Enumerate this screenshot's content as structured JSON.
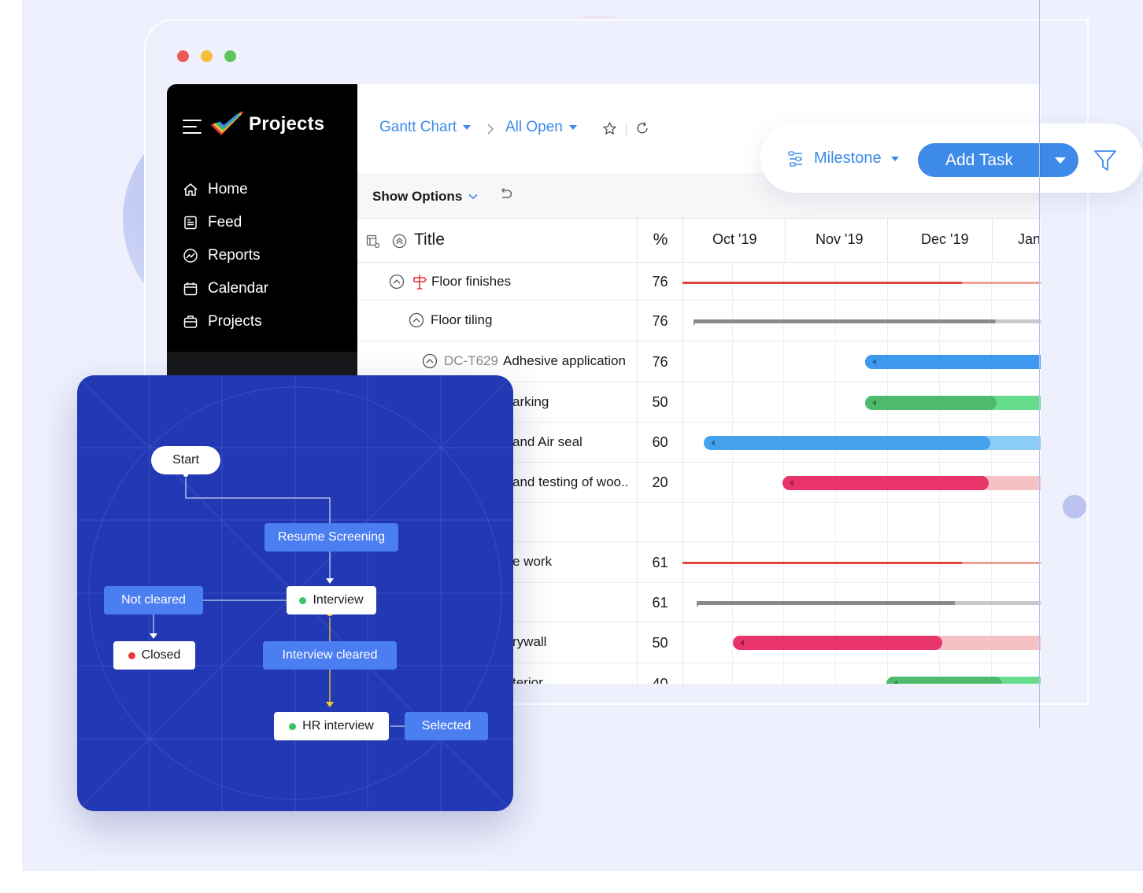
{
  "window_controls": {
    "close_color": "#ee5b55",
    "minimize_color": "#f4bd3a",
    "maximize_color": "#5fc55a"
  },
  "sidebar": {
    "app_title": "Projects",
    "items": [
      {
        "label": "Home",
        "icon": "home-icon"
      },
      {
        "label": "Feed",
        "icon": "feed-icon"
      },
      {
        "label": "Reports",
        "icon": "reports-icon"
      },
      {
        "label": "Calendar",
        "icon": "calendar-icon"
      },
      {
        "label": "Projects",
        "icon": "briefcase-icon"
      }
    ]
  },
  "header": {
    "view": "Gantt Chart",
    "filter": "All Open",
    "show_options": "Show Options"
  },
  "toolbar": {
    "milestone": "Milestone",
    "add_task": "Add Task",
    "accent": "#3d8ae9"
  },
  "table": {
    "title_header": "Title",
    "pct_header": "%",
    "months": [
      "Oct '19",
      "Nov '19",
      "Dec '19",
      "Jan"
    ],
    "rows": [
      {
        "title": "Floor finishes",
        "prefix": "",
        "pct": "76",
        "kind": "milestone"
      },
      {
        "title": "Floor tiling",
        "prefix": "",
        "pct": "76",
        "kind": "group"
      },
      {
        "title": "Adhesive application",
        "prefix": "DC-T629",
        "pct": "76",
        "kind": "task"
      },
      {
        "title": "arking",
        "prefix": "",
        "pct": "50",
        "kind": "task"
      },
      {
        "title": "and Air seal",
        "prefix": "",
        "pct": "60",
        "kind": "task"
      },
      {
        "title": "and testing of woo..",
        "prefix": "",
        "pct": "20",
        "kind": "task"
      },
      {
        "title": "",
        "prefix": "",
        "pct": "",
        "kind": "blank"
      },
      {
        "title": "e work",
        "prefix": "",
        "pct": "61",
        "kind": "milestone"
      },
      {
        "title": "",
        "prefix": "",
        "pct": "61",
        "kind": "group"
      },
      {
        "title": "rywall",
        "prefix": "",
        "pct": "50",
        "kind": "task"
      },
      {
        "title": "terior",
        "prefix": "",
        "pct": "40",
        "kind": "task"
      }
    ]
  },
  "gantt": {
    "bars": [
      {
        "row": 0,
        "type": "line",
        "start": 0.0,
        "end": 1.0,
        "progress": 0.78,
        "color": "#e0463a",
        "rest": "#f0a09a"
      },
      {
        "row": 1,
        "type": "summary",
        "start": 0.03,
        "end": 1.0,
        "progress": 0.87,
        "color": "#8a8a8a",
        "rest": "#c9c9c9"
      },
      {
        "row": 2,
        "type": "bar",
        "start": 0.51,
        "end": 1.0,
        "progress": 1.0,
        "color": "#3e9af0",
        "rest": "#3e9af0"
      },
      {
        "row": 3,
        "type": "bar",
        "start": 0.51,
        "end": 1.0,
        "progress": 0.75,
        "color": "#4dbb6a",
        "rest": "#66dd8c"
      },
      {
        "row": 4,
        "type": "bar",
        "start": 0.06,
        "end": 1.0,
        "progress": 0.85,
        "color": "#45a3ee",
        "rest": "#8ccdf5"
      },
      {
        "row": 5,
        "type": "bar",
        "start": 0.28,
        "end": 1.0,
        "progress": 0.8,
        "color": "#e8336b",
        "rest": "#f6c1c4"
      },
      {
        "row": 7,
        "type": "line",
        "start": 0.0,
        "end": 1.0,
        "progress": 0.78,
        "color": "#e0463a",
        "rest": "#f0a09a"
      },
      {
        "row": 8,
        "type": "summary",
        "start": 0.04,
        "end": 1.0,
        "progress": 0.75,
        "color": "#8a8a8a",
        "rest": "#c9c9c9"
      },
      {
        "row": 9,
        "type": "bar",
        "start": 0.14,
        "end": 1.0,
        "progress": 0.68,
        "color": "#e8336b",
        "rest": "#f6c1c4"
      },
      {
        "row": 10,
        "type": "bar",
        "start": 0.57,
        "end": 1.0,
        "progress": 0.75,
        "color": "#4dbb6a",
        "rest": "#66dd8c"
      }
    ]
  },
  "flow": {
    "nodes": {
      "start": "Start",
      "resume": "Resume Screening",
      "interview": "Interview",
      "not_cleared": "Not cleared",
      "closed": "Closed",
      "interview_cleared": "Interview cleared",
      "hr": "HR interview",
      "selected": "Selected"
    },
    "colors": {
      "bg": "#2338b3",
      "transition": "#4b7ef0",
      "green": "#37c464",
      "red": "#e8373a",
      "yellow": "#f6c93b"
    }
  }
}
